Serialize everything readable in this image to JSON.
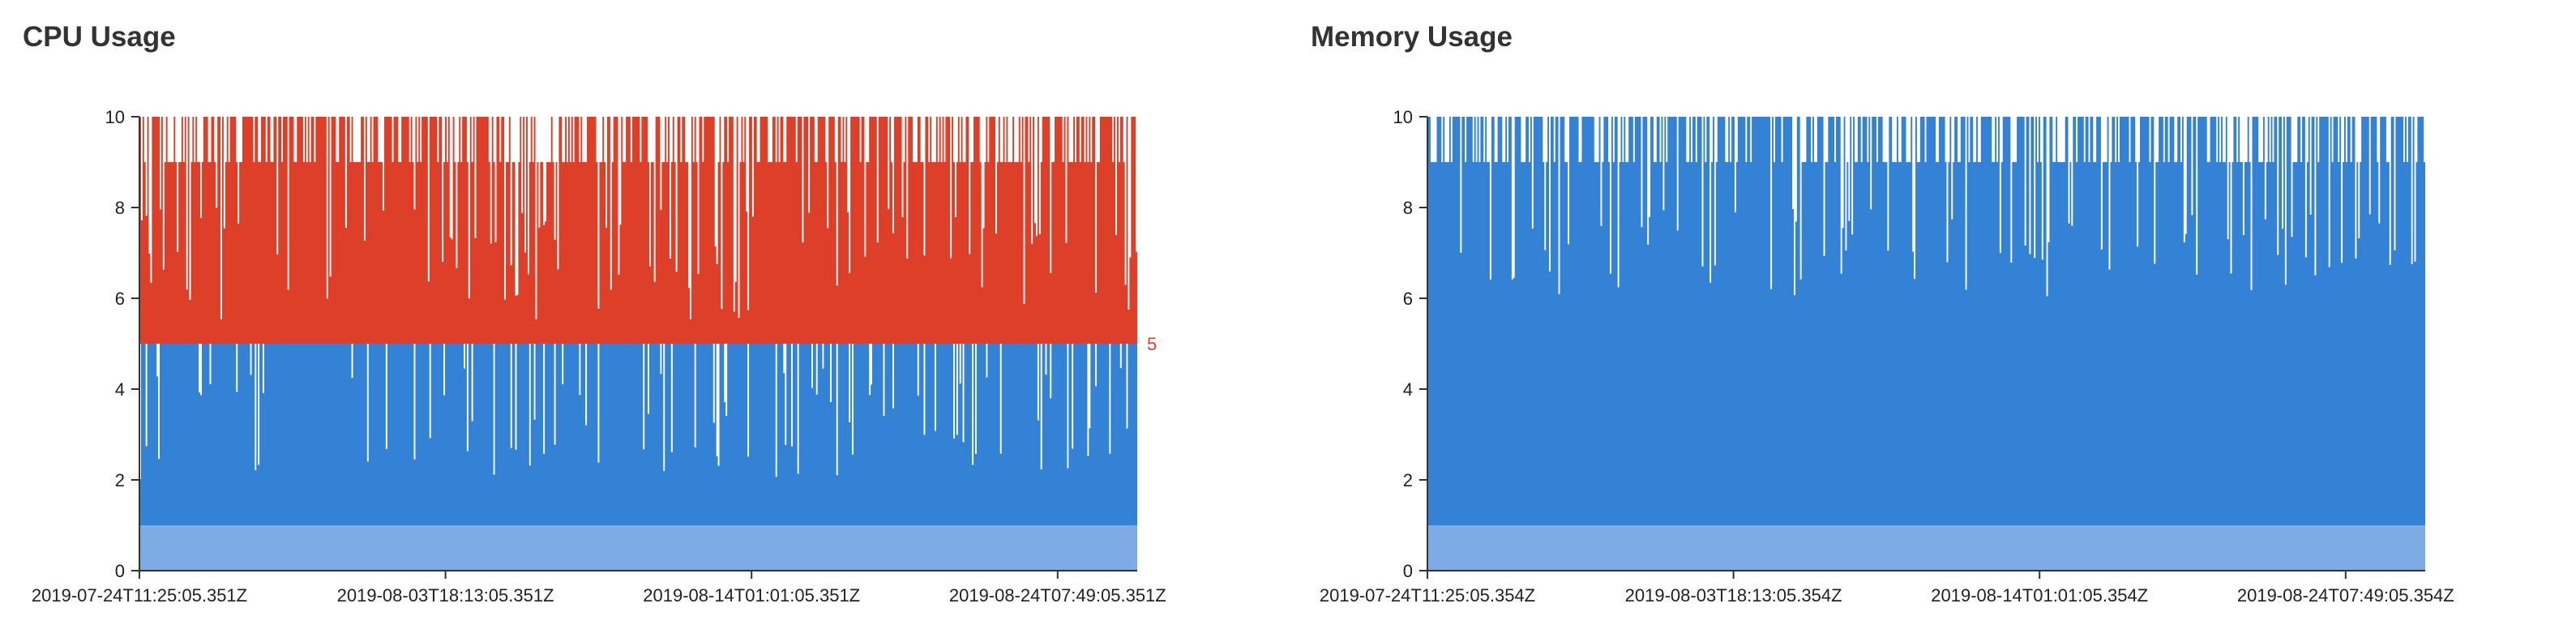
{
  "panels": [
    {
      "key": "cpu",
      "title": "CPU Usage"
    },
    {
      "key": "mem",
      "title": "Memory Usage"
    }
  ],
  "colors": {
    "light_blue": "#7fabe4",
    "blue": "#3482d6",
    "red": "#de3f29",
    "axis": "#333333",
    "threshold_label": "#de3f29"
  },
  "chart_data": [
    {
      "type": "area",
      "title": "CPU Usage",
      "xlabel": "",
      "ylabel": "",
      "ylim": [
        0,
        10
      ],
      "yticks": [
        0,
        2,
        4,
        6,
        8,
        10
      ],
      "x_start": "2019-07-24T11:25:05.351Z",
      "x_end": "2019-08-27T00:00:00.000Z",
      "x_ticks": [
        "2019-07-24T11:25:05.351Z",
        "2019-08-03T18:13:05.351Z",
        "2019-08-14T01:01:05.351Z",
        "2019-08-24T07:49:05.351Z"
      ],
      "grid": false,
      "threshold": {
        "value": 5,
        "label": "5",
        "color": "#de3f29"
      },
      "series": [
        {
          "color": "#7fabe4",
          "base": 0,
          "typical_top": 1,
          "note": "lowest band fills 0 to 1"
        },
        {
          "color": "#3482d6",
          "base": 1,
          "typical_top": 5,
          "note": "middle band fills roughly 1 to 5 with dips toward 2-3"
        },
        {
          "color": "#de3f29",
          "base": 5,
          "typical_top": 9,
          "note": "upper band above threshold 5, reaching 8-10"
        }
      ]
    },
    {
      "type": "area",
      "title": "Memory Usage",
      "xlabel": "",
      "ylabel": "",
      "ylim": [
        0,
        10
      ],
      "yticks": [
        0,
        2,
        4,
        6,
        8,
        10
      ],
      "x_start": "2019-07-24T11:25:05.354Z",
      "x_end": "2019-08-27T00:00:00.000Z",
      "x_ticks": [
        "2019-07-24T11:25:05.354Z",
        "2019-08-03T18:13:05.354Z",
        "2019-08-14T01:01:05.354Z",
        "2019-08-24T07:49:05.354Z"
      ],
      "grid": false,
      "series": [
        {
          "color": "#7fabe4",
          "base": 0,
          "typical_top": 1,
          "note": "lowest band fills 0 to 1"
        },
        {
          "color": "#3482d6",
          "base": 1,
          "typical_top": 9,
          "note": "main band fills roughly 1 to 9-10"
        }
      ]
    }
  ]
}
